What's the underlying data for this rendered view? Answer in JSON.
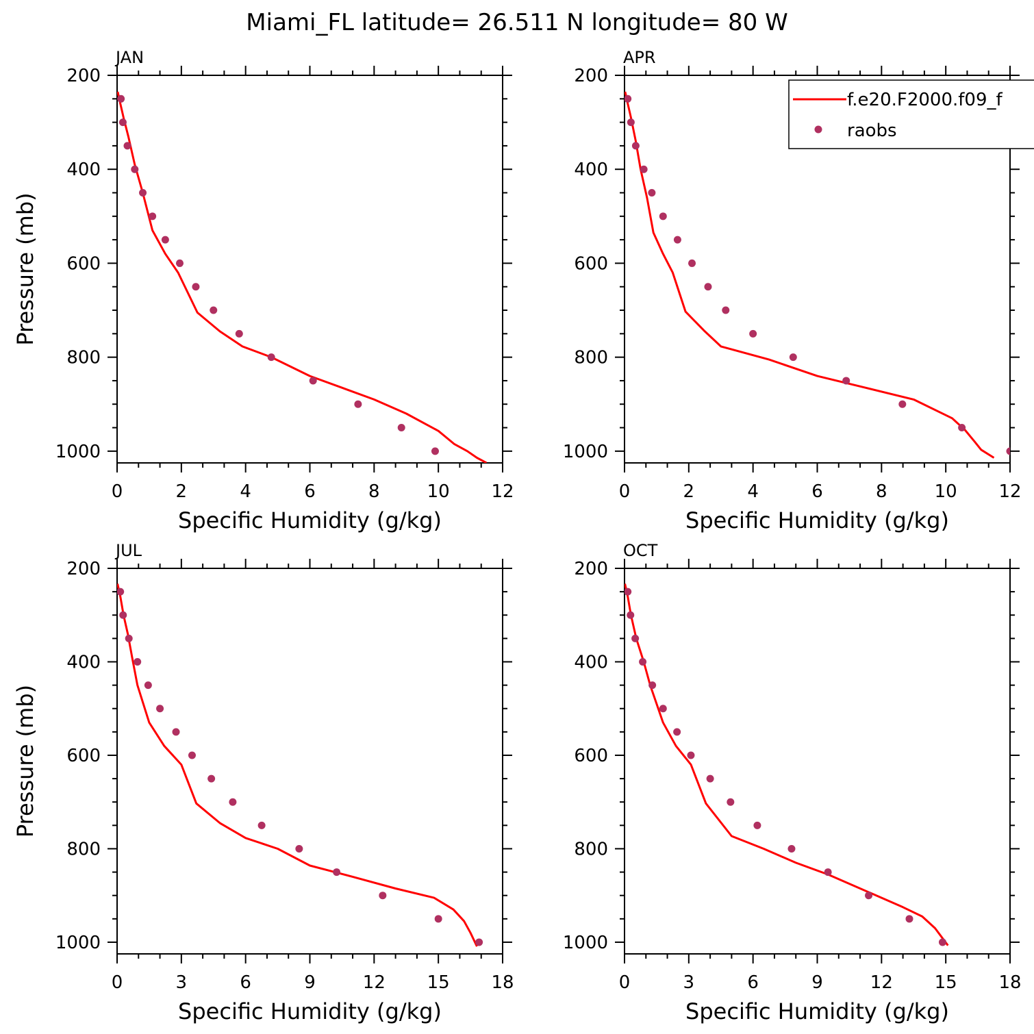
{
  "title": "Miami_FL  latitude= 26.511 N longitude= 80 W",
  "colors": {
    "model": "#ff0000",
    "obs": "#b03060",
    "axis": "#000000"
  },
  "legend": {
    "model": "f.e20.F2000.f09_f",
    "obs": "raobs",
    "placement": "top-right of APR panel (clipped)"
  },
  "chart_data": [
    {
      "type": "line",
      "panel": "JAN",
      "xlabel": "Specific Humidity (g/kg)",
      "ylabel": "Pressure (mb)",
      "xlim": [
        0,
        12
      ],
      "xticks": [
        0,
        2,
        4,
        6,
        8,
        10,
        12
      ],
      "ylim": [
        200,
        1025
      ],
      "yticks": [
        200,
        400,
        600,
        800,
        1000
      ],
      "y_inverted": true,
      "series": [
        {
          "name": "f.e20.F2000.f09_f",
          "style": "line",
          "x": [
            0.02,
            0.1,
            0.2,
            0.35,
            0.55,
            0.8,
            1.1,
            1.5,
            1.9,
            2.5,
            3.2,
            3.9,
            4.8,
            6.0,
            7.0,
            8.0,
            9.0,
            10.0,
            10.5,
            10.9,
            11.2,
            11.5
          ],
          "y": [
            235,
            260,
            290,
            330,
            390,
            450,
            530,
            580,
            620,
            705,
            745,
            777,
            800,
            840,
            865,
            890,
            920,
            957,
            985,
            1000,
            1014,
            1025
          ]
        },
        {
          "name": "raobs",
          "style": "markers",
          "x": [
            0.12,
            0.18,
            0.32,
            0.55,
            0.8,
            1.1,
            1.5,
            1.95,
            2.45,
            3.0,
            3.8,
            4.8,
            6.1,
            7.5,
            8.85,
            9.9
          ],
          "y": [
            250,
            300,
            350,
            400,
            450,
            500,
            550,
            600,
            650,
            700,
            750,
            800,
            850,
            900,
            950,
            1000
          ]
        }
      ]
    },
    {
      "type": "line",
      "panel": "APR",
      "xlabel": "Specific Humidity (g/kg)",
      "ylabel": "Pressure (mb)",
      "xlim": [
        0,
        12
      ],
      "xticks": [
        0,
        2,
        4,
        6,
        8,
        10,
        12
      ],
      "ylim": [
        200,
        1025
      ],
      "yticks": [
        200,
        400,
        600,
        800,
        1000
      ],
      "y_inverted": true,
      "series": [
        {
          "name": "f.e20.F2000.f09_f",
          "style": "line",
          "x": [
            0.02,
            0.1,
            0.2,
            0.35,
            0.5,
            0.7,
            0.9,
            1.2,
            1.5,
            1.9,
            2.5,
            3.0,
            4.5,
            6.0,
            7.5,
            9.0,
            10.2,
            10.6,
            10.9,
            11.1,
            11.5
          ],
          "y": [
            235,
            260,
            290,
            340,
            400,
            460,
            535,
            580,
            620,
            703,
            745,
            777,
            805,
            840,
            865,
            890,
            930,
            955,
            980,
            997,
            1014
          ]
        },
        {
          "name": "raobs",
          "style": "markers",
          "x": [
            0.1,
            0.2,
            0.35,
            0.6,
            0.85,
            1.2,
            1.65,
            2.1,
            2.6,
            3.15,
            4.0,
            5.25,
            6.9,
            8.65,
            10.5,
            12.0
          ],
          "y": [
            250,
            300,
            350,
            400,
            450,
            500,
            550,
            600,
            650,
            700,
            750,
            800,
            850,
            900,
            950,
            1000
          ]
        }
      ]
    },
    {
      "type": "line",
      "panel": "JUL",
      "xlabel": "Specific Humidity (g/kg)",
      "ylabel": "Pressure (mb)",
      "xlim": [
        0,
        18
      ],
      "xticks": [
        0,
        3,
        6,
        9,
        12,
        15,
        18
      ],
      "ylim": [
        200,
        1025
      ],
      "yticks": [
        200,
        400,
        600,
        800,
        1000
      ],
      "y_inverted": true,
      "series": [
        {
          "name": "f.e20.F2000.f09_f",
          "style": "line",
          "x": [
            0.02,
            0.15,
            0.3,
            0.5,
            0.7,
            0.95,
            1.5,
            2.2,
            3.0,
            3.7,
            4.8,
            6.0,
            7.5,
            9.0,
            11.0,
            13.0,
            14.8,
            15.7,
            16.2,
            16.5,
            16.8
          ],
          "y": [
            233,
            260,
            300,
            340,
            390,
            450,
            530,
            580,
            620,
            703,
            745,
            777,
            800,
            836,
            860,
            885,
            905,
            930,
            955,
            980,
            1009
          ]
        },
        {
          "name": "raobs",
          "style": "markers",
          "x": [
            0.15,
            0.28,
            0.55,
            0.95,
            1.45,
            2.0,
            2.75,
            3.5,
            4.4,
            5.4,
            6.75,
            8.5,
            10.25,
            12.4,
            15.0,
            16.9
          ],
          "y": [
            250,
            300,
            350,
            400,
            450,
            500,
            550,
            600,
            650,
            700,
            750,
            800,
            850,
            900,
            950,
            1000
          ]
        }
      ]
    },
    {
      "type": "line",
      "panel": "OCT",
      "xlabel": "Specific Humidity (g/kg)",
      "ylabel": "Pressure (mb)",
      "xlim": [
        0,
        18
      ],
      "xticks": [
        0,
        3,
        6,
        9,
        12,
        15,
        18
      ],
      "ylim": [
        200,
        1025
      ],
      "yticks": [
        200,
        400,
        600,
        800,
        1000
      ],
      "y_inverted": true,
      "series": [
        {
          "name": "f.e20.F2000.f09_f",
          "style": "line",
          "x": [
            0.02,
            0.15,
            0.3,
            0.55,
            0.9,
            1.2,
            1.8,
            2.4,
            3.1,
            3.8,
            5.0,
            6.5,
            8.0,
            9.5,
            11.5,
            13.0,
            13.9,
            14.5,
            15.1
          ],
          "y": [
            233,
            260,
            300,
            350,
            400,
            450,
            530,
            580,
            620,
            703,
            773,
            800,
            830,
            855,
            895,
            925,
            945,
            970,
            1007
          ]
        },
        {
          "name": "raobs",
          "style": "markers",
          "x": [
            0.15,
            0.28,
            0.5,
            0.85,
            1.3,
            1.8,
            2.45,
            3.1,
            4.0,
            4.95,
            6.2,
            7.8,
            9.5,
            11.4,
            13.3,
            14.85
          ],
          "y": [
            250,
            300,
            350,
            400,
            450,
            500,
            550,
            600,
            650,
            700,
            750,
            800,
            850,
            900,
            950,
            1000
          ]
        }
      ]
    }
  ]
}
